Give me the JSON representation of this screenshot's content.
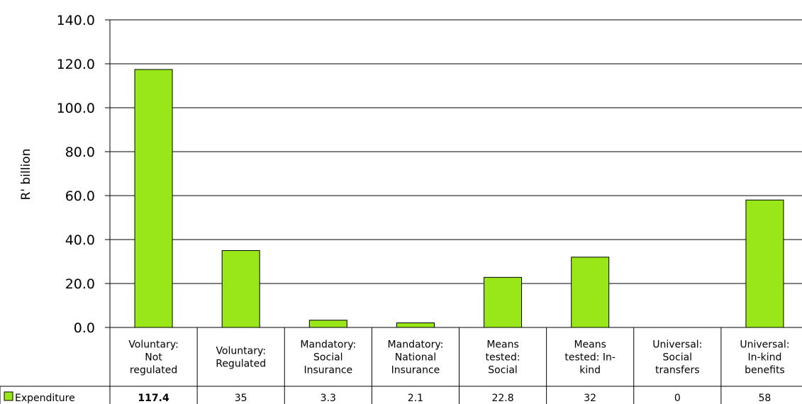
{
  "chart_data": {
    "type": "bar",
    "ylabel": "R' billion",
    "ylim": [
      0,
      140
    ],
    "yticks": [
      "0.0",
      "20.0",
      "40.0",
      "60.0",
      "80.0",
      "100.0",
      "120.0",
      "140.0"
    ],
    "grid": true,
    "categories": [
      [
        "Voluntary:",
        "Not",
        "regulated"
      ],
      [
        "Voluntary:",
        "Regulated"
      ],
      [
        "Mandatory:",
        "Social",
        "Insurance"
      ],
      [
        "Mandatory:",
        "National",
        "Insurance"
      ],
      [
        "Means",
        "tested:",
        "Social"
      ],
      [
        "Means",
        "tested: In-",
        "kind"
      ],
      [
        "Universal:",
        "Social",
        "transfers"
      ],
      [
        "Universal:",
        "In-kind",
        "benefits"
      ]
    ],
    "series": [
      {
        "name": "Expenditure",
        "values": [
          117.4,
          35,
          3.3,
          2.1,
          22.8,
          32,
          0,
          58
        ],
        "value_labels": [
          "117.4",
          "35",
          "3.3",
          "2.1",
          "22.8",
          "32",
          "0",
          "58"
        ],
        "color": "#99e619"
      }
    ],
    "legend_placement": "data-table-row-left"
  }
}
